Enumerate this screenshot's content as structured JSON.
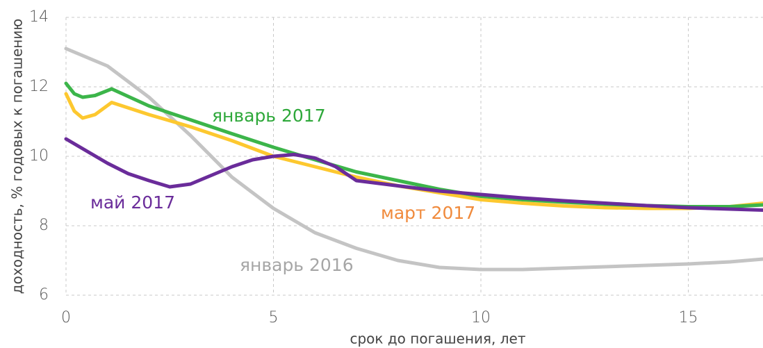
{
  "chart_data": {
    "type": "line",
    "xlabel": "срок до погашения, лет",
    "ylabel": "доходность, % годовых к погашению",
    "xlim": [
      0,
      16.8
    ],
    "ylim": [
      6,
      14
    ],
    "xticks": [
      0,
      5,
      10,
      15
    ],
    "yticks": [
      6,
      8,
      10,
      12,
      14
    ],
    "grid": true,
    "series": [
      {
        "name": "январь 2016",
        "color": "#c4c4c4",
        "label_color": "#a6a6a6",
        "x": [
          0,
          1,
          2,
          3,
          4,
          5,
          6,
          7,
          8,
          9,
          10,
          11,
          12,
          13,
          14,
          15,
          16,
          16.8
        ],
        "values": [
          13.1,
          12.6,
          11.7,
          10.6,
          9.4,
          8.5,
          7.8,
          7.35,
          7.0,
          6.8,
          6.74,
          6.74,
          6.78,
          6.82,
          6.86,
          6.9,
          6.96,
          7.04
        ]
      },
      {
        "name": "март 2017",
        "color": "#fdc82f",
        "label_color": "#f08a3c",
        "x": [
          0,
          0.2,
          0.4,
          0.7,
          1.1,
          2,
          3,
          4,
          5,
          6,
          7,
          8,
          9,
          10,
          11,
          12,
          13,
          14,
          15,
          16,
          16.8
        ],
        "values": [
          11.8,
          11.3,
          11.1,
          11.2,
          11.55,
          11.2,
          10.85,
          10.45,
          10.0,
          9.7,
          9.4,
          9.15,
          8.95,
          8.75,
          8.65,
          8.57,
          8.52,
          8.5,
          8.5,
          8.55,
          8.65
        ]
      },
      {
        "name": "январь 2017",
        "color": "#3cb54a",
        "label_color": "#2ea83a",
        "x": [
          0,
          0.2,
          0.4,
          0.7,
          1.1,
          2,
          3,
          4,
          5,
          6,
          7,
          8,
          9,
          10,
          11,
          12,
          13,
          14,
          15,
          16,
          16.8
        ],
        "values": [
          12.1,
          11.8,
          11.7,
          11.75,
          11.94,
          11.45,
          11.05,
          10.65,
          10.26,
          9.9,
          9.55,
          9.3,
          9.05,
          8.85,
          8.75,
          8.68,
          8.62,
          8.58,
          8.55,
          8.55,
          8.6
        ]
      },
      {
        "name": "май 2017",
        "color": "#6a2c9a",
        "label_color": "#6a2c9a",
        "x": [
          0,
          0.5,
          1,
          1.5,
          2,
          2.5,
          3,
          3.5,
          4,
          4.5,
          5,
          5.5,
          6,
          6.5,
          7,
          8,
          9,
          10,
          11,
          12,
          13,
          14,
          15,
          16,
          16.8
        ],
        "values": [
          10.5,
          10.15,
          9.8,
          9.5,
          9.3,
          9.12,
          9.2,
          9.45,
          9.7,
          9.9,
          10.0,
          10.05,
          9.95,
          9.7,
          9.3,
          9.15,
          9.0,
          8.9,
          8.8,
          8.72,
          8.65,
          8.58,
          8.52,
          8.48,
          8.45
        ]
      }
    ]
  }
}
